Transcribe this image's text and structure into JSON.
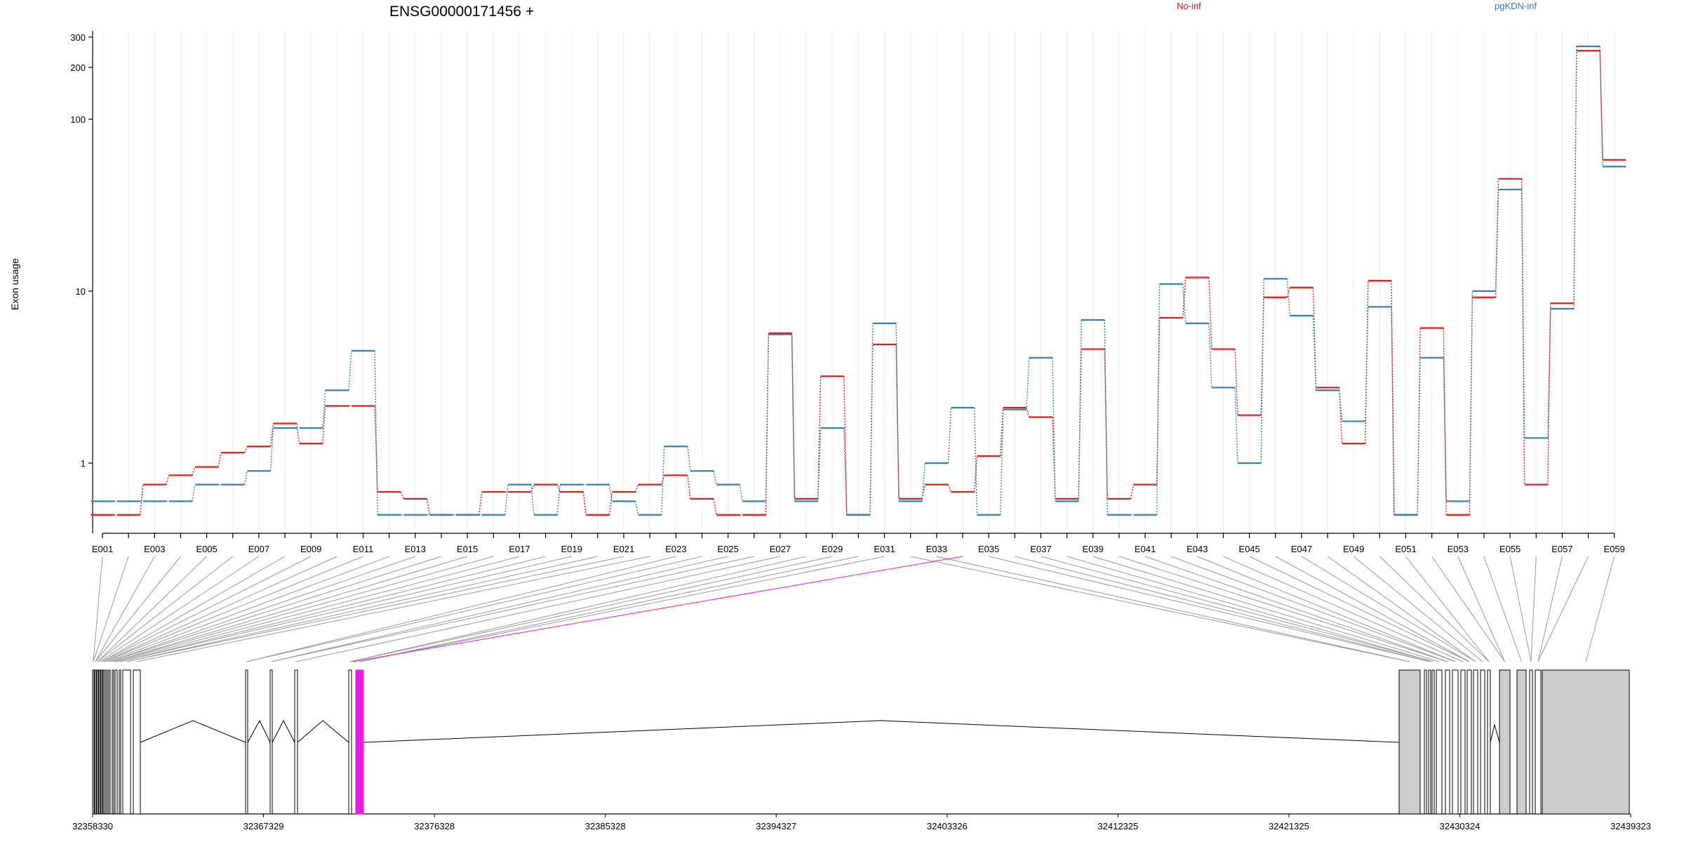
{
  "chart_data": {
    "type": "line",
    "title": "ENSG00000171456 +",
    "ylabel": "Exon usage",
    "yscale": "log",
    "ylim": [
      0.45,
      320
    ],
    "yticks": [
      1,
      10,
      100,
      200,
      300
    ],
    "grid": true,
    "legend_placement": "top",
    "exon_labels": [
      "E001",
      "E003",
      "E005",
      "E007",
      "E009",
      "E011",
      "E013",
      "E015",
      "E017",
      "E019",
      "E021",
      "E023",
      "E025",
      "E027",
      "E029",
      "E031",
      "E033",
      "E035",
      "E037",
      "E039",
      "E041",
      "E043",
      "E045",
      "E047",
      "E049",
      "E051",
      "E053",
      "E055",
      "E057",
      "E059"
    ],
    "exons": [
      "E001",
      "E002",
      "E003",
      "E004",
      "E005",
      "E006",
      "E007",
      "E008",
      "E009",
      "E010",
      "E011",
      "E012",
      "E013",
      "E014",
      "E015",
      "E016",
      "E017",
      "E018",
      "E019",
      "E020",
      "E021",
      "E022",
      "E023",
      "E024",
      "E025",
      "E026",
      "E027",
      "E028",
      "E029",
      "E030",
      "E031",
      "E032",
      "E033",
      "E034",
      "E035",
      "E036",
      "E037",
      "E038",
      "E039",
      "E040",
      "E041",
      "E042",
      "E043",
      "E044",
      "E045",
      "E046",
      "E047",
      "E048",
      "E049",
      "E050",
      "E051",
      "E052",
      "E053",
      "E054",
      "E055",
      "E056",
      "E057",
      "E058",
      "E059"
    ],
    "series": [
      {
        "name": "No-inf",
        "color": "#e41a1c",
        "values": [
          0.5,
          0.5,
          0.75,
          0.85,
          0.95,
          1.15,
          1.25,
          1.7,
          1.3,
          2.15,
          2.15,
          0.68,
          0.62,
          0.5,
          0.5,
          0.68,
          0.68,
          0.75,
          0.68,
          0.5,
          0.68,
          0.75,
          0.85,
          0.62,
          0.5,
          0.5,
          5.7,
          0.62,
          3.2,
          0.5,
          4.9,
          0.62,
          0.75,
          0.68,
          1.1,
          2.1,
          1.85,
          0.62,
          4.6,
          0.62,
          0.75,
          7.0,
          12.0,
          4.6,
          1.9,
          9.2,
          10.5,
          2.75,
          1.3,
          11.5,
          0.5,
          6.1,
          0.5,
          9.2,
          45,
          0.75,
          8.5,
          250,
          58
        ]
      },
      {
        "name": "pgKDN-inf",
        "color": "#377eb8",
        "values": [
          0.6,
          0.6,
          0.6,
          0.6,
          0.75,
          0.75,
          0.9,
          1.6,
          1.6,
          2.65,
          4.5,
          0.5,
          0.5,
          0.5,
          0.5,
          0.5,
          0.75,
          0.5,
          0.75,
          0.75,
          0.6,
          0.5,
          1.25,
          0.9,
          0.75,
          0.6,
          5.6,
          0.6,
          1.6,
          0.5,
          6.5,
          0.6,
          1.0,
          2.1,
          0.5,
          2.05,
          4.1,
          0.6,
          6.8,
          0.5,
          0.5,
          11.0,
          6.5,
          2.75,
          1.0,
          11.8,
          7.2,
          2.65,
          1.75,
          8.1,
          0.5,
          4.1,
          0.6,
          10.0,
          39,
          1.4,
          7.9,
          265,
          53
        ]
      }
    ]
  },
  "gene_model": {
    "coordinate_labels": [
      "32358330",
      "32367329",
      "32376328",
      "32385328",
      "32394327",
      "32403326",
      "32412325",
      "32421325",
      "32430324",
      "32439323"
    ],
    "highlighted_exon": "E034",
    "highlight_color": "#e020e0"
  }
}
